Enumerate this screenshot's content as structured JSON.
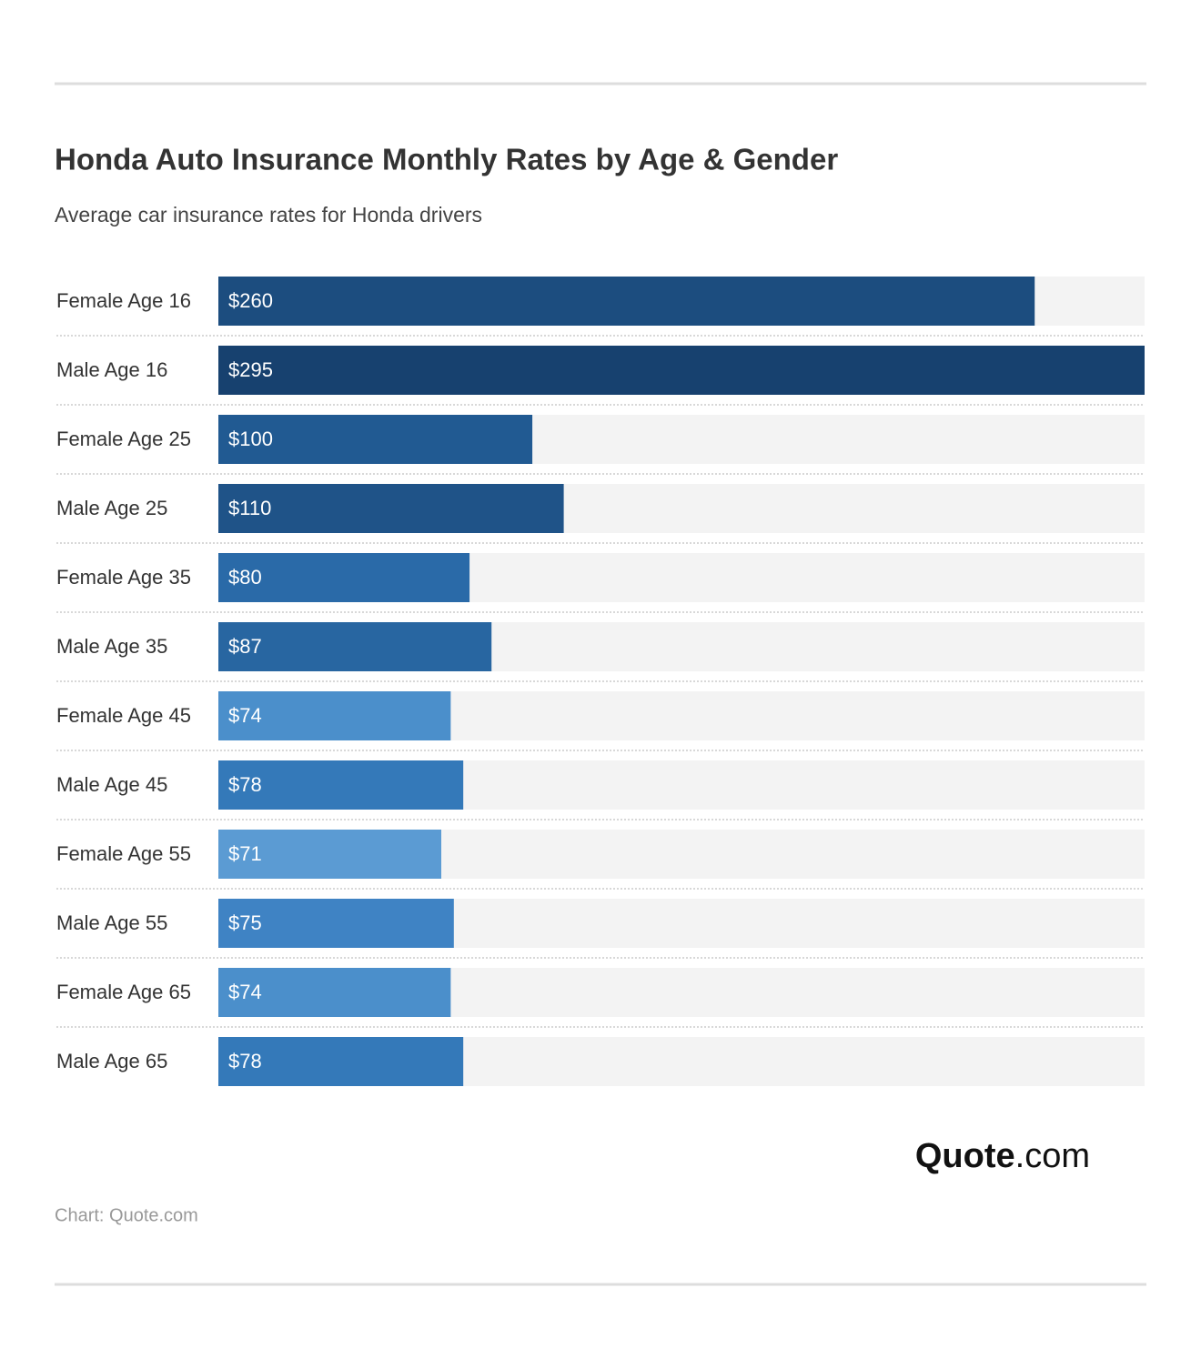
{
  "chart_data": {
    "type": "bar",
    "orientation": "horizontal",
    "title": "Honda Auto Insurance Monthly Rates by Age & Gender",
    "subtitle": "Average car insurance rates for Honda drivers",
    "categories": [
      "Female Age 16",
      "Male Age 16",
      "Female Age 25",
      "Male Age 25",
      "Female Age 35",
      "Male Age 35",
      "Female Age 45",
      "Male Age 45",
      "Female Age 55",
      "Male Age 55",
      "Female Age 65",
      "Male Age 65"
    ],
    "values": [
      260,
      295,
      100,
      110,
      80,
      87,
      74,
      78,
      71,
      75,
      74,
      78
    ],
    "value_labels": [
      "$260",
      "$295",
      "$100",
      "$110",
      "$80",
      "$87",
      "$74",
      "$78",
      "$71",
      "$75",
      "$74",
      "$78"
    ],
    "colors": [
      "#1c4d7f",
      "#17416f",
      "#215a92",
      "#1f5388",
      "#2a6aa8",
      "#2866a1",
      "#4b8fcb",
      "#3479b9",
      "#5b9bd3",
      "#3f83c4",
      "#4b8fcb",
      "#3479b9"
    ],
    "logo": {
      "bold": "Quote",
      "rest": ".com"
    },
    "source": "Chart: Quote.com"
  }
}
